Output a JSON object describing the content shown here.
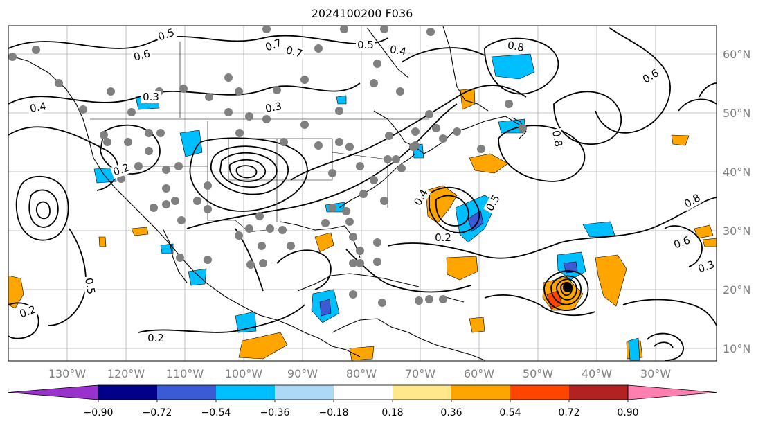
{
  "title": "2024100200 F036",
  "map": {
    "lat_labels": [
      "60°N",
      "50°N",
      "40°N",
      "30°N",
      "20°N",
      "10°N"
    ],
    "lon_labels": [
      "130°W",
      "120°W",
      "110°W",
      "100°W",
      "90°W",
      "80°W",
      "70°W",
      "60°W",
      "50°W",
      "40°W",
      "30°W"
    ],
    "contour_labels": [
      "0.5",
      "0.6",
      "0.7",
      "0.8",
      "0.4",
      "0.3",
      "0.2",
      "0.5",
      "0.4",
      "0.7",
      "0.8",
      "0.6",
      "0.4",
      "0.5",
      "0.2",
      "0.8",
      "0.6",
      "0.3",
      "0.2",
      "0.3",
      "0.5",
      "0.2"
    ]
  },
  "colorbar": {
    "ticks": [
      "−0.90",
      "−0.72",
      "−0.54",
      "−0.36",
      "−0.18",
      "0.18",
      "0.36",
      "0.54",
      "0.72",
      "0.90"
    ],
    "colors": [
      "#9932cc",
      "#00008b",
      "#3b5bd6",
      "#00bfff",
      "#add8f6",
      "#ffffff",
      "#ffe88c",
      "#ffa500",
      "#ff4500",
      "#b22222",
      "#ff80b0"
    ]
  },
  "colors": {
    "positive_fill": "#ffa500",
    "negative_fill": "#00bfff",
    "stations": "#808080",
    "contours": "#000000"
  }
}
